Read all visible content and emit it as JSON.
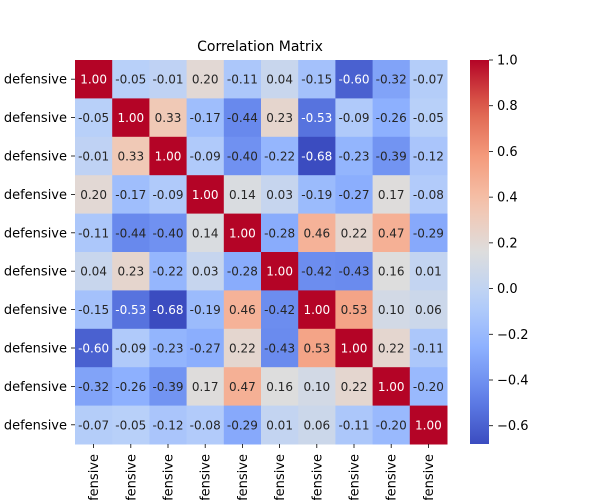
{
  "chart_data": {
    "type": "heatmap",
    "title": "Correlation Matrix",
    "row_labels": [
      "defensive",
      "defensive",
      "defensive",
      "defensive",
      "defensive",
      "defensive",
      "defensive",
      "defensive",
      "defensive",
      "defensive"
    ],
    "col_labels": [
      "defensive",
      "defensive",
      "defensive",
      "defensive",
      "defensive",
      "defensive",
      "defensive",
      "defensive",
      "defensive",
      "defensive"
    ],
    "values": [
      [
        1.0,
        -0.05,
        -0.01,
        0.2,
        -0.11,
        0.04,
        -0.15,
        -0.6,
        -0.32,
        -0.07
      ],
      [
        -0.05,
        1.0,
        0.33,
        -0.17,
        -0.44,
        0.23,
        -0.53,
        -0.09,
        -0.26,
        -0.05
      ],
      [
        -0.01,
        0.33,
        1.0,
        -0.09,
        -0.4,
        -0.22,
        -0.68,
        -0.23,
        -0.39,
        -0.12
      ],
      [
        0.2,
        -0.17,
        -0.09,
        1.0,
        0.14,
        0.03,
        -0.19,
        -0.27,
        0.17,
        -0.08
      ],
      [
        -0.11,
        -0.44,
        -0.4,
        0.14,
        1.0,
        -0.28,
        0.46,
        0.22,
        0.47,
        -0.29
      ],
      [
        0.04,
        0.23,
        -0.22,
        0.03,
        -0.28,
        1.0,
        -0.42,
        -0.43,
        0.16,
        0.01
      ],
      [
        -0.15,
        -0.53,
        -0.68,
        -0.19,
        0.46,
        -0.42,
        1.0,
        0.53,
        0.1,
        0.06
      ],
      [
        -0.6,
        -0.09,
        -0.23,
        -0.27,
        0.22,
        -0.43,
        0.53,
        1.0,
        0.22,
        -0.11
      ],
      [
        -0.32,
        -0.26,
        -0.39,
        0.17,
        0.47,
        0.16,
        0.1,
        0.22,
        1.0,
        -0.2
      ],
      [
        -0.07,
        -0.05,
        -0.12,
        -0.08,
        -0.29,
        0.01,
        0.06,
        -0.11,
        -0.2,
        1.0
      ]
    ],
    "colormap": "coolwarm",
    "vmin": -0.68,
    "vmax": 1.0,
    "colorbar_ticks": [
      "1.0",
      "0.8",
      "0.6",
      "0.4",
      "0.2",
      "0.0",
      "−0.2",
      "−0.4",
      "−0.6"
    ],
    "colorbar_tick_values": [
      1.0,
      0.8,
      0.6,
      0.4,
      0.2,
      0.0,
      -0.2,
      -0.4,
      -0.6
    ],
    "annotate": true,
    "grid": false
  }
}
